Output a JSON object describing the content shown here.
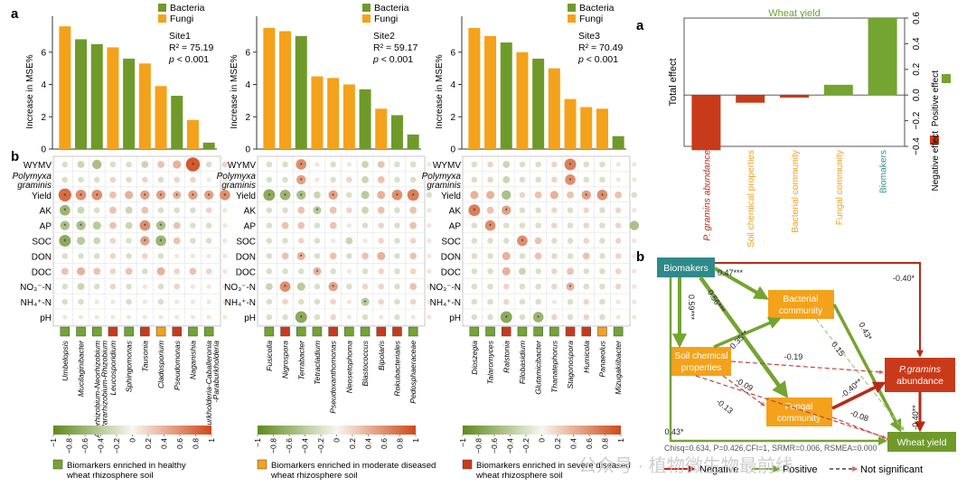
{
  "legend": {
    "bacteria": "Bacteria",
    "fungi": "Fungi"
  },
  "colors": {
    "bacteria": "#6f9a2a",
    "fungi": "#f4a21b",
    "negative": "#c93a1a",
    "positive": "#74a431",
    "dark_red": "#b52b16",
    "teal": "#3a8f8f",
    "biomarker_box": "#2e8a8a"
  },
  "panel_labels": {
    "a": "a",
    "b": "b"
  },
  "chart_data": [
    {
      "type": "bar",
      "id": "site1",
      "ylabel": "Increase in MSE%",
      "ylim": [
        0,
        8
      ],
      "yticks": [
        0,
        2,
        4,
        6
      ],
      "site": "Site1",
      "r2": "R² = 75.19",
      "pval": "p < 0.001",
      "categories": [
        "Umbelopsis",
        "Mucilaginibacter",
        "Allorhizobium-Neorhizobium-Pararhizobium-Rhizobium",
        "Leucosporidium",
        "Sphingomonas",
        "Tausonia",
        "Cladosporium",
        "Pseudomonas",
        "Naganishia",
        "Burkholderia-Caballeronia-Paraburkholderia"
      ],
      "category_lines": [
        [
          "Umbelopsis"
        ],
        [
          "Mucilaginibacter"
        ],
        [
          "Allorhizobium-Neorhizobium",
          "-Pararhizobium-Rhizobium"
        ],
        [
          "Leucosporidium"
        ],
        [
          "Sphingomonas"
        ],
        [
          "Tausonia"
        ],
        [
          "Cladosporium"
        ],
        [
          "Pseudomonas"
        ],
        [
          "Naganishia"
        ],
        [
          "Burkholderia-Caballeronia",
          "-Paraburkholderia"
        ]
      ],
      "group": [
        "fungi",
        "bacteria",
        "bacteria",
        "fungi",
        "bacteria",
        "fungi",
        "fungi",
        "bacteria",
        "fungi",
        "bacteria"
      ],
      "values": [
        7.6,
        6.8,
        6.5,
        6.3,
        5.6,
        5.3,
        3.9,
        3.3,
        1.8,
        0.4
      ],
      "enrichment": [
        "healthy",
        "healthy",
        "healthy",
        "severe",
        "healthy",
        "severe",
        "moderate",
        "severe",
        "healthy",
        "healthy"
      ]
    },
    {
      "type": "bar",
      "id": "site2",
      "ylabel": "Increase in MSE%",
      "ylim": [
        0,
        8
      ],
      "yticks": [
        0,
        2,
        4,
        6
      ],
      "site": "Site2",
      "r2": "R² = 59.17",
      "pval": "p < 0.001",
      "categories": [
        "Fusicolla",
        "Nigrospora",
        "Terrabacter",
        "Tetracladium",
        "Pseudoxanthomonas",
        "Neosetophoma",
        "Blastococcus",
        "Bipolaris",
        "Rokubacteriales",
        "Pedosphaeraceae"
      ],
      "category_lines": [
        [
          "Fusicolla"
        ],
        [
          "Nigrospora"
        ],
        [
          "Terrabacter"
        ],
        [
          "Tetracladium"
        ],
        [
          "Pseudoxanthomonas"
        ],
        [
          "Neosetophoma"
        ],
        [
          "Blastococcus"
        ],
        [
          "Bipolaris"
        ],
        [
          "Rokubacteriales"
        ],
        [
          "Pedosphaeraceae"
        ]
      ],
      "group": [
        "fungi",
        "fungi",
        "bacteria",
        "fungi",
        "fungi",
        "fungi",
        "bacteria",
        "fungi",
        "bacteria",
        "bacteria"
      ],
      "values": [
        7.5,
        7.3,
        7.0,
        4.5,
        4.4,
        4.0,
        3.7,
        2.5,
        2.1,
        0.9
      ],
      "enrichment": [
        "healthy",
        "severe",
        "healthy",
        "healthy",
        "severe",
        "healthy",
        "healthy",
        "severe",
        "severe",
        "healthy"
      ]
    },
    {
      "type": "bar",
      "id": "site3",
      "ylabel": "Increase in MSE%",
      "ylim": [
        0,
        8
      ],
      "yticks": [
        0,
        2,
        4,
        6
      ],
      "site": "Site3",
      "r2": "R² = 70.49",
      "pval": "p < 0.001",
      "categories": [
        "Dioszegia",
        "Talaromyces",
        "Ralstonia",
        "Filobasidium",
        "Glutamicibacter",
        "Thanatephorus",
        "Stagonospora",
        "Humicola",
        "Panaeolus",
        "Mizugakiibacter"
      ],
      "category_lines": [
        [
          "Dioszegia"
        ],
        [
          "Talaromyces"
        ],
        [
          "Ralstonia"
        ],
        [
          "Filobasidium"
        ],
        [
          "Glutamicibacter"
        ],
        [
          "Thanatephorus"
        ],
        [
          "Stagonospora"
        ],
        [
          "Humicola"
        ],
        [
          "Panaeolus"
        ],
        [
          "Mizugakiibacter"
        ]
      ],
      "group": [
        "fungi",
        "fungi",
        "bacteria",
        "fungi",
        "bacteria",
        "fungi",
        "fungi",
        "fungi",
        "fungi",
        "bacteria"
      ],
      "values": [
        7.5,
        7.0,
        6.6,
        6.0,
        5.6,
        5.0,
        3.1,
        2.6,
        2.5,
        0.8
      ],
      "enrichment": [
        "healthy",
        "healthy",
        "severe",
        "healthy",
        "healthy",
        "healthy",
        "severe",
        "severe",
        "moderate",
        "healthy"
      ]
    },
    {
      "type": "heatmap",
      "id": "correlation_site1",
      "rows": [
        "WYMV",
        "Polymyxa graminis",
        "Yield",
        "AK",
        "AP",
        "SOC",
        "DON",
        "DOC",
        "NO₃⁻-N",
        "NH₄⁺-N",
        "pH"
      ],
      "columns_ref": "site1",
      "values": [
        [
          -0.2,
          -0.3,
          -0.5,
          -0.2,
          -0.2,
          -0.3,
          0.3,
          0.4,
          0.9,
          -0.2,
          0.2
        ],
        [
          -0.2,
          -0.2,
          -0.2,
          0.2,
          -0.2,
          0.2,
          -0.2,
          0.2,
          0.2,
          -0.1,
          0.1
        ],
        [
          0.8,
          0.6,
          0.6,
          0.3,
          0.4,
          0.5,
          0.5,
          0.4,
          0.5,
          0.5,
          0.6
        ],
        [
          -0.6,
          -0.3,
          -0.2,
          0.3,
          -0.3,
          0.3,
          -0.2,
          -0.2,
          -0.2,
          0.2,
          -0.1
        ],
        [
          -0.5,
          -0.5,
          -0.4,
          0.3,
          -0.3,
          0.6,
          -0.5,
          0.3,
          -0.2,
          -0.2,
          0.1
        ],
        [
          -0.7,
          -0.4,
          -0.3,
          0.2,
          -0.2,
          0.5,
          -0.6,
          0.3,
          -0.2,
          -0.2,
          0.1
        ],
        [
          -0.2,
          -0.2,
          -0.2,
          0.2,
          -0.2,
          0.2,
          -0.2,
          0.1,
          -0.1,
          0.1,
          0.1
        ],
        [
          0.3,
          0.4,
          0.3,
          0.2,
          0.3,
          -0.2,
          0.4,
          0.2,
          0.3,
          0.2,
          0.1
        ],
        [
          -0.2,
          -0.3,
          -0.2,
          0.2,
          -0.2,
          0.1,
          -0.2,
          0.2,
          0.1,
          -0.1,
          0.1
        ],
        [
          -0.2,
          -0.2,
          -0.1,
          0.1,
          -0.2,
          0.1,
          -0.2,
          0.1,
          -0.1,
          -0.1,
          0.1
        ],
        [
          -0.1,
          -0.1,
          -0.1,
          0.1,
          -0.1,
          0.1,
          -0.1,
          0.1,
          -0.1,
          0.1,
          0.1
        ]
      ],
      "stars": [
        [
          0,
          8
        ],
        [
          2,
          0
        ],
        [
          2,
          1
        ],
        [
          2,
          2
        ],
        [
          2,
          5
        ],
        [
          2,
          6
        ],
        [
          2,
          7
        ],
        [
          2,
          8
        ],
        [
          2,
          9
        ],
        [
          2,
          10
        ],
        [
          3,
          0
        ],
        [
          4,
          0
        ],
        [
          4,
          1
        ],
        [
          4,
          5
        ],
        [
          4,
          6
        ],
        [
          5,
          0
        ],
        [
          5,
          5
        ],
        [
          5,
          6
        ]
      ]
    },
    {
      "type": "heatmap",
      "id": "correlation_site2",
      "rows": [
        "WYMV",
        "Polymyxa graminis",
        "Yield",
        "AK",
        "AP",
        "SOC",
        "DON",
        "DOC",
        "NO₃⁻-N",
        "NH₄⁺-N",
        "pH"
      ],
      "columns_ref": "site2",
      "values": [
        [
          -0.2,
          -0.2,
          0.6,
          0.1,
          -0.2,
          0.1,
          -0.3,
          0.3,
          -0.2,
          -0.2,
          0.1
        ],
        [
          -0.2,
          -0.2,
          0.5,
          0.1,
          -0.2,
          0.2,
          -0.3,
          0.3,
          -0.2,
          -0.2,
          0.1
        ],
        [
          -0.7,
          -0.6,
          -0.5,
          -0.3,
          0.5,
          -0.2,
          -0.4,
          0.4,
          0.6,
          0.7,
          -0.2
        ],
        [
          -0.2,
          -0.2,
          0.3,
          -0.4,
          0.3,
          0.2,
          -0.3,
          0.3,
          -0.2,
          0.3,
          0.1
        ],
        [
          -0.2,
          0.3,
          0.3,
          -0.2,
          0.3,
          0.1,
          -0.2,
          0.2,
          -0.2,
          0.3,
          0.1
        ],
        [
          -0.2,
          -0.2,
          0.2,
          -0.2,
          0.1,
          -0.3,
          0.1,
          0.2,
          -0.2,
          0.2,
          0.1
        ],
        [
          -0.2,
          0.3,
          0.4,
          -0.2,
          0.3,
          -0.2,
          0.3,
          0.4,
          -0.2,
          0.3,
          0.1
        ],
        [
          -0.2,
          -0.2,
          -0.2,
          0.4,
          -0.2,
          0.1,
          -0.2,
          0.2,
          -0.2,
          0.2,
          0.1
        ],
        [
          -0.3,
          0.6,
          -0.4,
          -0.2,
          0.5,
          -0.2,
          0.2,
          0.2,
          -0.2,
          0.3,
          0.1
        ],
        [
          -0.2,
          0.2,
          -0.2,
          -0.2,
          0.2,
          0.1,
          -0.4,
          0.2,
          -0.2,
          0.2,
          0.1
        ],
        [
          -0.2,
          -0.2,
          -0.7,
          -0.2,
          0.2,
          0.1,
          -0.2,
          0.1,
          -0.2,
          0.1,
          0.1
        ]
      ],
      "stars": [
        [
          0,
          2
        ],
        [
          1,
          2
        ],
        [
          2,
          0
        ],
        [
          2,
          1
        ],
        [
          2,
          2
        ],
        [
          2,
          4
        ],
        [
          2,
          8
        ],
        [
          2,
          9
        ],
        [
          3,
          3
        ],
        [
          6,
          2
        ],
        [
          7,
          3
        ],
        [
          8,
          1
        ],
        [
          8,
          4
        ],
        [
          9,
          6
        ],
        [
          10,
          2
        ]
      ]
    },
    {
      "type": "heatmap",
      "id": "correlation_site3",
      "rows": [
        "WYMV",
        "Polymyxa graminis",
        "Yield",
        "AK",
        "AP",
        "SOC",
        "DON",
        "DOC",
        "NO₃⁻-N",
        "NH₄⁺-N",
        "pH"
      ],
      "columns_ref": "site3",
      "values": [
        [
          -0.2,
          0.2,
          -0.3,
          -0.2,
          -0.2,
          0.2,
          0.7,
          -0.2,
          -0.2,
          0.1,
          0.1
        ],
        [
          -0.2,
          0.2,
          -0.3,
          -0.2,
          -0.2,
          0.2,
          0.6,
          -0.2,
          -0.2,
          0.1,
          0.1
        ],
        [
          0.4,
          0.4,
          -0.5,
          0.2,
          0.3,
          0.4,
          0.3,
          0.5,
          0.6,
          0.3,
          -0.2
        ],
        [
          0.7,
          0.3,
          0.5,
          -0.2,
          -0.2,
          0.2,
          -0.2,
          0.2,
          -0.2,
          0.2,
          0.1
        ],
        [
          -0.2,
          0.6,
          -0.2,
          -0.2,
          -0.2,
          0.2,
          -0.2,
          0.2,
          -0.2,
          0.2,
          -0.5
        ],
        [
          -0.2,
          -0.2,
          -0.2,
          0.6,
          0.3,
          -0.2,
          -0.2,
          0.2,
          -0.2,
          0.2,
          0.1
        ],
        [
          0.2,
          -0.2,
          0.4,
          -0.2,
          0.3,
          0.2,
          -0.2,
          0.3,
          -0.2,
          0.2,
          0.1
        ],
        [
          -0.2,
          -0.2,
          0.4,
          -0.3,
          -0.2,
          0.2,
          0.3,
          -0.2,
          -0.2,
          0.2,
          0.1
        ],
        [
          -0.2,
          -0.2,
          0.2,
          -0.2,
          -0.2,
          0.2,
          0.4,
          -0.2,
          -0.2,
          0.2,
          0.1
        ],
        [
          -0.2,
          -0.2,
          0.2,
          -0.2,
          -0.2,
          0.1,
          -0.2,
          0.2,
          -0.2,
          0.1,
          0.1
        ],
        [
          -0.2,
          -0.2,
          -0.7,
          -0.2,
          -0.6,
          0.2,
          -0.2,
          0.2,
          -0.2,
          0.1,
          0.1
        ]
      ],
      "stars": [
        [
          0,
          6
        ],
        [
          1,
          6
        ],
        [
          2,
          7
        ],
        [
          2,
          8
        ],
        [
          3,
          0
        ],
        [
          3,
          2
        ],
        [
          4,
          1
        ],
        [
          5,
          3
        ],
        [
          8,
          6
        ],
        [
          10,
          2
        ],
        [
          10,
          4
        ]
      ]
    },
    {
      "type": "bar",
      "id": "total_effect",
      "title": "Wheat yield",
      "ylabel": "Total effect",
      "ylim": [
        -0.4,
        0.6
      ],
      "yticks": [
        -0.4,
        -0.2,
        0.0,
        0.2,
        0.4,
        0.6
      ],
      "ytick_labels": [
        "−0.4",
        "−0.2",
        "0.0",
        "0.2",
        "0.4",
        "0.6"
      ],
      "categories": [
        "P. gramins abundance",
        "Soil chemical properties",
        "Bacterial community",
        "Fungal community",
        "Biomakers"
      ],
      "values": [
        -0.43,
        -0.06,
        -0.02,
        0.08,
        0.6
      ],
      "legend_negative": "Negative effect",
      "legend_positive": "Positive effect"
    }
  ],
  "heat_legend": {
    "ticks": [
      "−1",
      "−0.8",
      "−0.6",
      "−0.4",
      "−0.2",
      "0",
      "0.2",
      "0.4",
      "0.6",
      "0.8",
      "1"
    ],
    "healthy": "Biomarkers enriched in healthy wheat rhizosphere soil",
    "moderate": "Biomarkers enriched in moderate diseased wheat rhizosphere soil",
    "severe": "Biomarkers enriched in severe diseased wheat rhizosphere soil",
    "healthy_lines": [
      "Biomarkers enriched in healthy",
      "wheat rhizosphere soil"
    ],
    "moderate_lines": [
      "Biomarkers enriched in moderate diseased",
      "wheat rhizosphere soil"
    ],
    "severe_lines": [
      "Biomarkers enriched in severe diseased",
      "wheat rhizosphere soil"
    ]
  },
  "sem": {
    "nodes": {
      "biomakers": "Biomakers",
      "bacterial": [
        "Bacterial",
        "community"
      ],
      "soil": [
        "Soil chemical",
        "properties"
      ],
      "fungal": [
        "Fungal",
        "community"
      ],
      "pgramins": [
        "P.gramins",
        "abundance"
      ],
      "yield": "Wheat yield"
    },
    "paths": [
      {
        "from": "biomakers",
        "to": "bacterial",
        "coef": "0.47***",
        "sign": "positive"
      },
      {
        "from": "biomakers",
        "to": "pgramins",
        "coef": "-0.40*",
        "sign": "negative"
      },
      {
        "from": "biomakers",
        "to": "soil",
        "coef": "0.59***",
        "sign": "positive"
      },
      {
        "from": "biomakers",
        "to": "fungal",
        "coef": "0.56***",
        "sign": "positive"
      },
      {
        "from": "soil",
        "to": "bacterial",
        "coef": "0.35**",
        "sign": "positive"
      },
      {
        "from": "bacterial",
        "to": "yield",
        "coef": "0.43*",
        "sign": "positive"
      },
      {
        "from": "bacterial",
        "to": "fungal",
        "coef": "0.15",
        "sign": "not significant"
      },
      {
        "from": "soil",
        "to": "pgramins",
        "coef": "-0.19",
        "sign": "not significant"
      },
      {
        "from": "soil",
        "to": "fungal",
        "coef": "-0.09",
        "sign": "not significant"
      },
      {
        "from": "soil",
        "to": "yield",
        "coef": "-0.13",
        "sign": "not significant"
      },
      {
        "from": "fungal",
        "to": "pgramins",
        "coef": "-0.40**",
        "sign": "negative"
      },
      {
        "from": "fungal",
        "to": "yield",
        "coef": "-0.08",
        "sign": "not significant"
      },
      {
        "from": "pgramins",
        "to": "yield",
        "coef": "-0.40**",
        "sign": "negative"
      },
      {
        "from": "biomakers",
        "to": "yield",
        "coef": "0.43*",
        "sign": "positive"
      }
    ],
    "fit": "Chisq=0.634, P=0.426,CFI=1, SRMR=0.006, RSMEA=0.000",
    "legend": {
      "negative": "Negative",
      "positive": "Positive",
      "ns": "Not significant"
    }
  },
  "watermark": "公众号 · 植物微生物最前线"
}
